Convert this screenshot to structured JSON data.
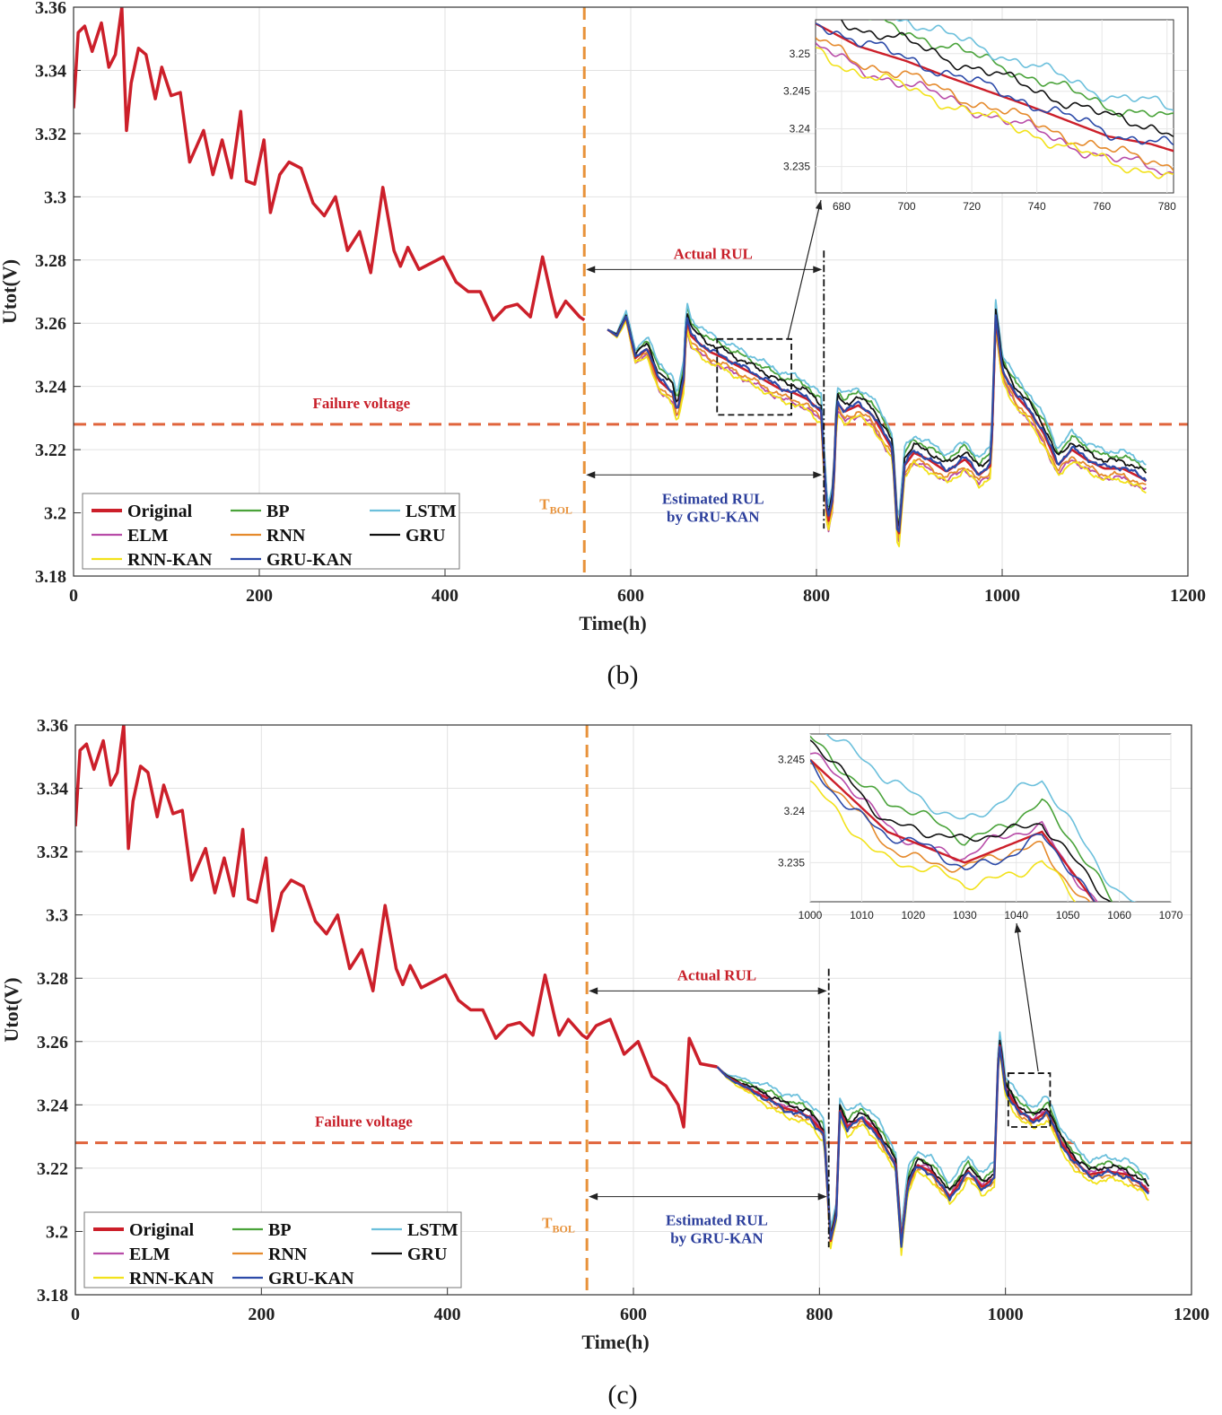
{
  "colors": {
    "Original": "#cc1f2a",
    "BP": "#4aa33a",
    "LSTM": "#6cc0dc",
    "ELM": "#b84ca8",
    "RNN": "#e58a2c",
    "GRU": "#111111",
    "RNN-KAN": "#f2e21b",
    "GRU-KAN": "#2c4aa8",
    "failure": "#e0643c",
    "tbol": "#e8923a",
    "actual_text": "#c8202a",
    "estimated_text": "#2c3f9c"
  },
  "chart_data": [
    {
      "type": "line",
      "caption": "(b)",
      "xlabel": "Time(h)",
      "ylabel": "Utot(V)",
      "xlim": [
        0,
        1200
      ],
      "ylim": [
        3.18,
        3.36
      ],
      "xticks": [
        "0",
        "200",
        "400",
        "600",
        "800",
        "1000",
        "1200"
      ],
      "yticks": [
        "3.18",
        "3.2",
        "3.22",
        "3.24",
        "3.26",
        "3.28",
        "3.3",
        "3.32",
        "3.34",
        "3.36"
      ],
      "grid": true,
      "legend": {
        "location": "lower-left",
        "entries": [
          "Original",
          "BP",
          "LSTM",
          "ELM",
          "RNN",
          "GRU",
          "RNN-KAN",
          "GRU-KAN"
        ]
      },
      "failure_voltage": 3.228,
      "failure_label": "Failure voltage",
      "t_bol": 550,
      "t_bol_label": "T",
      "t_bol_sub": "BOL",
      "actual_eol": 808,
      "estimated_eol": 808,
      "actual_rul_label": "Actual RUL",
      "estimated_rul_label": [
        "Estimated RUL",
        "by GRU-KAN"
      ],
      "prediction_start": 575,
      "zoom_box": {
        "x": [
          693,
          773
        ],
        "y": [
          3.231,
          3.255
        ]
      },
      "inset": {
        "xlim": [
          672,
          782
        ],
        "ylim": [
          3.2315,
          3.2545
        ],
        "xticks": [
          "680",
          "700",
          "720",
          "740",
          "760",
          "780"
        ],
        "yticks": [
          "3.235",
          "3.24",
          "3.245",
          "3.25"
        ]
      },
      "series": [
        {
          "name": "Original",
          "x": [
            0,
            5,
            12,
            20,
            30,
            38,
            45,
            52,
            57,
            62,
            70,
            78,
            88,
            95,
            105,
            115,
            125,
            140,
            150,
            160,
            170,
            180,
            186,
            195,
            205,
            212,
            222,
            232,
            245,
            258,
            270,
            282,
            295,
            308,
            320,
            333,
            345,
            352,
            360,
            372,
            385,
            398,
            412,
            425,
            438,
            452,
            465,
            478,
            492,
            505,
            515,
            520,
            530,
            545,
            550
          ],
          "y": [
            3.328,
            3.352,
            3.354,
            3.346,
            3.355,
            3.341,
            3.345,
            3.36,
            3.321,
            3.336,
            3.347,
            3.345,
            3.331,
            3.341,
            3.332,
            3.333,
            3.311,
            3.321,
            3.307,
            3.318,
            3.306,
            3.327,
            3.305,
            3.304,
            3.318,
            3.295,
            3.307,
            3.311,
            3.309,
            3.298,
            3.294,
            3.3,
            3.283,
            3.289,
            3.276,
            3.303,
            3.283,
            3.278,
            3.284,
            3.277,
            3.279,
            3.281,
            3.273,
            3.27,
            3.27,
            3.261,
            3.265,
            3.266,
            3.262,
            3.281,
            3.268,
            3.262,
            3.267,
            3.262,
            3.261
          ]
        },
        {
          "name": "Prediction base",
          "x": [
            575,
            585,
            595,
            605,
            618,
            630,
            645,
            650,
            657,
            660,
            665,
            672,
            685,
            700,
            712,
            725,
            738,
            750,
            762,
            775,
            790,
            805,
            812,
            818,
            822,
            830,
            845,
            860,
            872,
            882,
            888,
            895,
            905,
            920,
            940,
            960,
            975,
            988,
            993,
            1000,
            1015,
            1030,
            1045,
            1060,
            1075,
            1090,
            1110,
            1130,
            1150,
            1155
          ],
          "y": [
            3.258,
            3.256,
            3.262,
            3.249,
            3.252,
            3.242,
            3.238,
            3.232,
            3.242,
            3.262,
            3.256,
            3.254,
            3.251,
            3.249,
            3.247,
            3.245,
            3.243,
            3.241,
            3.239,
            3.238,
            3.236,
            3.232,
            3.196,
            3.205,
            3.235,
            3.232,
            3.234,
            3.231,
            3.225,
            3.22,
            3.19,
            3.215,
            3.219,
            3.217,
            3.213,
            3.217,
            3.212,
            3.215,
            3.262,
            3.245,
            3.237,
            3.232,
            3.225,
            3.215,
            3.22,
            3.217,
            3.214,
            3.214,
            3.211,
            3.21
          ]
        }
      ],
      "series_offsets": {
        "BP": 0.004,
        "LSTM": 0.0055,
        "ELM": -0.003,
        "RNN": -0.002,
        "GRU": 0.0025,
        "RNN-KAN": -0.0035,
        "GRU-KAN": 0.0005
      }
    },
    {
      "type": "line",
      "caption": "(c)",
      "xlabel": "Time(h)",
      "ylabel": "Utot(V)",
      "xlim": [
        0,
        1200
      ],
      "ylim": [
        3.18,
        3.36
      ],
      "xticks": [
        "0",
        "200",
        "400",
        "600",
        "800",
        "1000",
        "1200"
      ],
      "yticks": [
        "3.18",
        "3.2",
        "3.22",
        "3.24",
        "3.26",
        "3.28",
        "3.3",
        "3.32",
        "3.34",
        "3.36"
      ],
      "grid": true,
      "legend": {
        "location": "lower-left",
        "entries": [
          "Original",
          "BP",
          "LSTM",
          "ELM",
          "RNN",
          "GRU",
          "RNN-KAN",
          "GRU-KAN"
        ]
      },
      "failure_voltage": 3.228,
      "failure_label": "Failure voltage",
      "t_bol": 550,
      "t_bol_label": "T",
      "t_bol_sub": "BOL",
      "actual_eol": 810,
      "estimated_eol": 810,
      "actual_rul_label": "Actual RUL",
      "estimated_rul_label": [
        "Estimated RUL",
        "by GRU-KAN"
      ],
      "prediction_start": 690,
      "zoom_box": {
        "x": [
          1003,
          1048
        ],
        "y": [
          3.233,
          3.25
        ]
      },
      "inset": {
        "xlim": [
          1000,
          1070
        ],
        "ylim": [
          3.2312,
          3.2475
        ],
        "xticks": [
          "1000",
          "1010",
          "1020",
          "1030",
          "1040",
          "1050",
          "1060",
          "1070"
        ],
        "yticks": [
          "3.235",
          "3.24",
          "3.245"
        ]
      },
      "series": [
        {
          "name": "Original",
          "x": [
            0,
            5,
            12,
            20,
            30,
            38,
            45,
            52,
            57,
            62,
            70,
            78,
            88,
            95,
            105,
            115,
            125,
            140,
            150,
            160,
            170,
            180,
            186,
            195,
            205,
            212,
            222,
            232,
            245,
            258,
            270,
            282,
            295,
            308,
            320,
            333,
            345,
            352,
            360,
            372,
            385,
            398,
            412,
            425,
            438,
            452,
            465,
            478,
            492,
            505,
            515,
            520,
            530,
            545,
            550,
            560,
            575,
            590,
            605,
            620,
            635,
            648,
            654,
            660,
            672,
            690
          ],
          "y": [
            3.328,
            3.352,
            3.354,
            3.346,
            3.355,
            3.341,
            3.345,
            3.36,
            3.321,
            3.336,
            3.347,
            3.345,
            3.331,
            3.341,
            3.332,
            3.333,
            3.311,
            3.321,
            3.307,
            3.318,
            3.306,
            3.327,
            3.305,
            3.304,
            3.318,
            3.295,
            3.307,
            3.311,
            3.309,
            3.298,
            3.294,
            3.3,
            3.283,
            3.289,
            3.276,
            3.303,
            3.283,
            3.278,
            3.284,
            3.277,
            3.279,
            3.281,
            3.273,
            3.27,
            3.27,
            3.261,
            3.265,
            3.266,
            3.262,
            3.281,
            3.268,
            3.262,
            3.267,
            3.262,
            3.261,
            3.265,
            3.267,
            3.256,
            3.26,
            3.249,
            3.246,
            3.24,
            3.233,
            3.261,
            3.253,
            3.252
          ]
        },
        {
          "name": "Prediction base",
          "x": [
            690,
            700,
            712,
            725,
            738,
            750,
            762,
            775,
            790,
            805,
            812,
            818,
            822,
            830,
            845,
            860,
            872,
            882,
            888,
            895,
            905,
            920,
            940,
            960,
            975,
            988,
            993,
            1000,
            1015,
            1030,
            1045,
            1060,
            1075,
            1090,
            1110,
            1130,
            1150,
            1155
          ],
          "y": [
            3.252,
            3.249,
            3.247,
            3.245,
            3.243,
            3.241,
            3.239,
            3.238,
            3.236,
            3.231,
            3.197,
            3.205,
            3.238,
            3.233,
            3.236,
            3.232,
            3.226,
            3.221,
            3.196,
            3.215,
            3.221,
            3.219,
            3.211,
            3.219,
            3.214,
            3.217,
            3.261,
            3.245,
            3.238,
            3.235,
            3.238,
            3.228,
            3.222,
            3.218,
            3.219,
            3.218,
            3.214,
            3.212
          ]
        }
      ],
      "series_offsets": {
        "BP": 0.0025,
        "LSTM": 0.0045,
        "ELM": 0.0005,
        "RNN": -0.001,
        "GRU": 0.0015,
        "RNN-KAN": -0.0025,
        "GRU-KAN": -0.0005
      }
    }
  ]
}
